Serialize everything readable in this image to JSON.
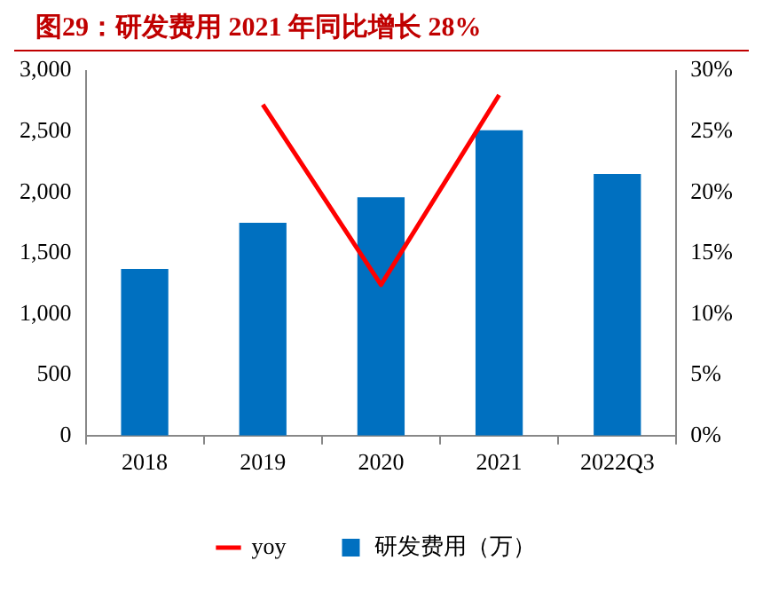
{
  "chart_data": {
    "type": "bar",
    "title": "图29：研发费用 2021 年同比增长 28%",
    "categories": [
      "2018",
      "2019",
      "2020",
      "2021",
      "2022Q3"
    ],
    "series": [
      {
        "name": "研发费用（万）",
        "color": "#0070c0",
        "values": [
          1370,
          1750,
          1960,
          2510,
          2150
        ]
      },
      {
        "name": "yoy",
        "type": "line",
        "axis": "y2",
        "color": "#ff0000",
        "values": [
          null,
          27.2,
          12.4,
          28,
          null
        ]
      }
    ],
    "ylim": [
      0,
      3000
    ],
    "yticks": [
      {
        "value": 0,
        "label": "0"
      },
      {
        "value": 500,
        "label": "500"
      },
      {
        "value": 1000,
        "label": "1,000"
      },
      {
        "value": 1500,
        "label": "1,500"
      },
      {
        "value": 2000,
        "label": "2,000"
      },
      {
        "value": 2500,
        "label": "2,500"
      },
      {
        "value": 3000,
        "label": "3,000"
      }
    ],
    "y2lim": [
      0,
      30
    ],
    "y2ticks": [
      {
        "value": 0,
        "label": "0%"
      },
      {
        "value": 5,
        "label": "5%"
      },
      {
        "value": 10,
        "label": "10%"
      },
      {
        "value": 15,
        "label": "15%"
      },
      {
        "value": 20,
        "label": "20%"
      },
      {
        "value": 25,
        "label": "25%"
      },
      {
        "value": 30,
        "label": "30%"
      }
    ],
    "grid": false,
    "legend": "bottom",
    "marker": "none",
    "line_style": "solid"
  }
}
